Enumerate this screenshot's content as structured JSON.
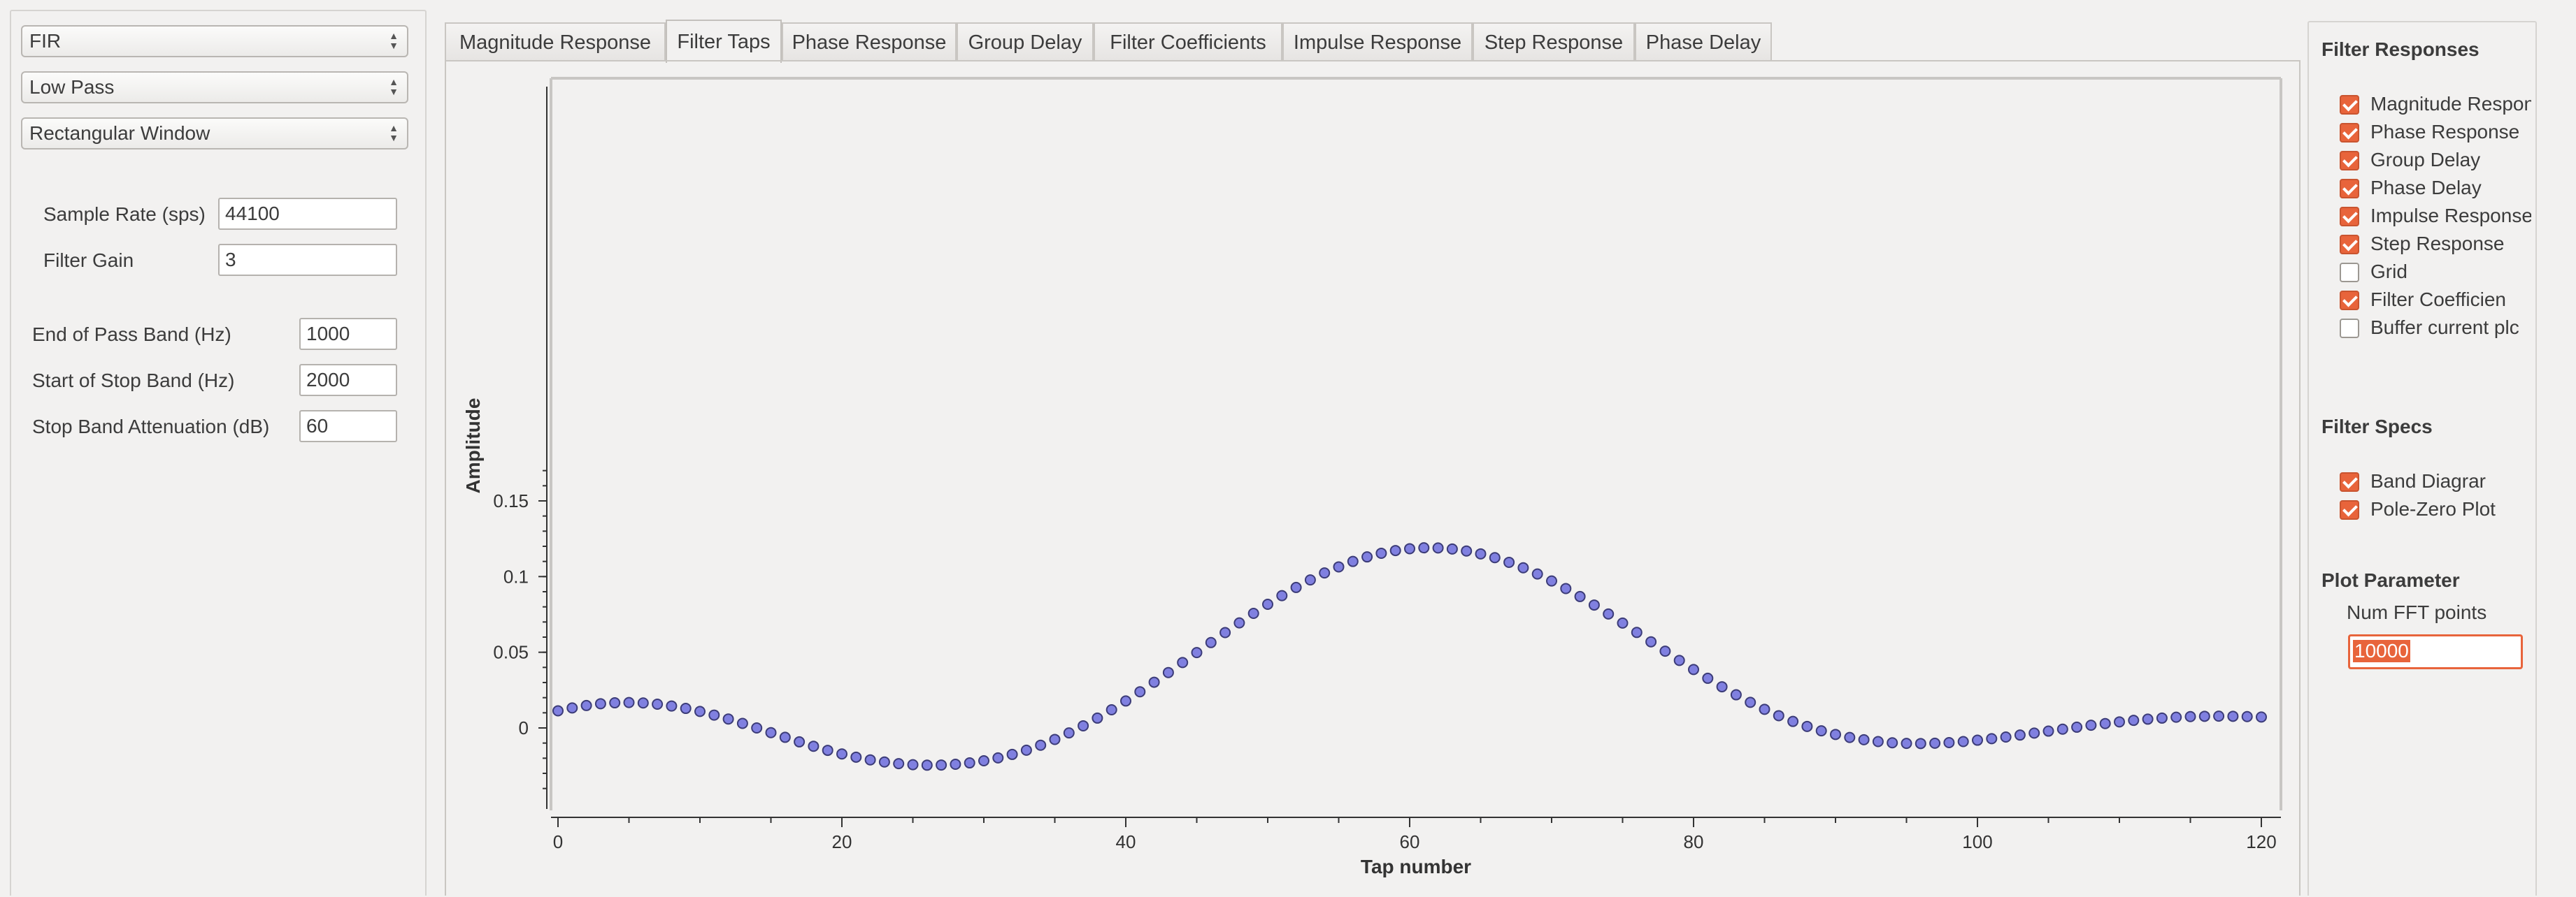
{
  "left_panel": {
    "filter_type": "FIR",
    "filter_response_type": "Low Pass",
    "window_type": "Rectangular Window",
    "sample_rate": {
      "label": "Sample Rate (sps)",
      "value": "44100"
    },
    "filter_gain": {
      "label": "Filter Gain",
      "value": "3"
    },
    "end_pass_band": {
      "label": "End of Pass Band (Hz)",
      "value": "1000"
    },
    "start_stop_band": {
      "label": "Start of Stop Band (Hz)",
      "value": "2000"
    },
    "stop_band_atten": {
      "label": "Stop Band Attenuation (dB)",
      "value": "60"
    }
  },
  "tabs": [
    "Magnitude Response",
    "Filter Taps",
    "Phase Response",
    "Group Delay",
    "Filter Coefficients",
    "Impulse Response",
    "Step Response",
    "Phase Delay"
  ],
  "active_tab": "Filter Taps",
  "right_panel": {
    "filter_responses_title": "Filter Responses",
    "responses": [
      {
        "label": "Magnitude Respon",
        "checked": true
      },
      {
        "label": "Phase Response",
        "checked": true
      },
      {
        "label": "Group Delay",
        "checked": true
      },
      {
        "label": "Phase Delay",
        "checked": true
      },
      {
        "label": "Impulse Response",
        "checked": true
      },
      {
        "label": "Step Response",
        "checked": true
      },
      {
        "label": "Grid",
        "checked": false
      },
      {
        "label": "Filter Coefficien",
        "checked": true
      },
      {
        "label": "Buffer current plc",
        "checked": false
      }
    ],
    "filter_specs_title": "Filter Specs",
    "specs": [
      {
        "label": "Band Diagrar",
        "checked": true
      },
      {
        "label": "Pole-Zero Plot",
        "checked": true
      }
    ],
    "plot_parameter_title": "Plot Parameter",
    "num_fft_label": "Num FFT points",
    "num_fft_value": "10000"
  },
  "colors": {
    "accent": "#e8643b",
    "marker_fill": "#8080e0",
    "marker_edge": "#3c3c78"
  },
  "chart_data": {
    "type": "scatter",
    "xlabel": "Tap number",
    "ylabel": "Amplitude",
    "xlim": [
      0,
      120
    ],
    "ylim": [
      -0.045,
      0.19
    ],
    "xticks": [
      0,
      20,
      40,
      60,
      80,
      100,
      120
    ],
    "yticks": [
      0,
      0.05,
      0.1,
      0.15
    ],
    "ytick_labels": [
      "0",
      "0.05",
      "0.1",
      "0.15"
    ],
    "series": [
      {
        "x_start": 0,
        "x_end": 120,
        "y": [
          0.0113,
          0.0132,
          0.0148,
          0.016,
          0.0166,
          0.0168,
          0.0165,
          0.0157,
          0.0145,
          0.0129,
          0.0109,
          0.0085,
          0.0059,
          0.003,
          -0.0,
          -0.0031,
          -0.0062,
          -0.0092,
          -0.0121,
          -0.0148,
          -0.0172,
          -0.0193,
          -0.0211,
          -0.0225,
          -0.0236,
          -0.0243,
          -0.0246,
          -0.0245,
          -0.024,
          -0.0231,
          -0.0217,
          -0.0198,
          -0.0175,
          -0.0147,
          -0.0114,
          -0.0076,
          -0.0033,
          0.0014,
          0.0065,
          0.012,
          0.0178,
          0.0239,
          0.0302,
          0.0366,
          0.0432,
          0.0498,
          0.0564,
          0.063,
          0.0694,
          0.0757,
          0.0817,
          0.0874,
          0.0928,
          0.0978,
          0.1024,
          0.1064,
          0.11,
          0.113,
          0.1154,
          0.1172,
          0.1184,
          0.119,
          0.1189,
          0.1182,
          0.1169,
          0.115,
          0.1125,
          0.1094,
          0.1058,
          0.1017,
          0.0971,
          0.0921,
          0.0868,
          0.0812,
          0.0753,
          0.0693,
          0.0631,
          0.0569,
          0.0507,
          0.0446,
          0.0386,
          0.0328,
          0.0272,
          0.0219,
          0.0169,
          0.0123,
          0.0081,
          0.0043,
          0.001,
          -0.0019,
          -0.0043,
          -0.0063,
          -0.0078,
          -0.009,
          -0.0098,
          -0.0102,
          -0.0103,
          -0.0101,
          -0.0097,
          -0.009,
          -0.0081,
          -0.0071,
          -0.006,
          -0.0047,
          -0.0034,
          -0.0021,
          -0.0008,
          0.0005,
          0.0018,
          0.0029,
          0.004,
          0.005,
          0.0058,
          0.0065,
          0.0071,
          0.0075,
          0.0077,
          0.0078,
          0.0077,
          0.0075,
          0.0072
        ]
      }
    ]
  }
}
